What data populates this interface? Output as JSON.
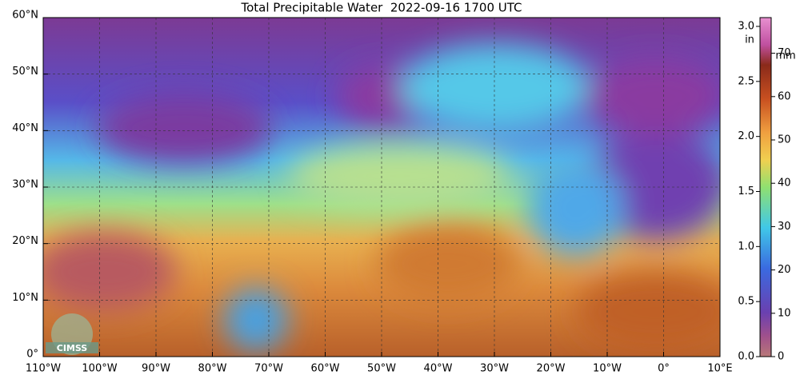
{
  "title": "Total Precipitable Water  2022-09-16 1700 UTC",
  "map": {
    "lon_range": [
      -110,
      10
    ],
    "lat_range": [
      0,
      60
    ],
    "lon_ticks": [
      {
        "value": -110,
        "label": "110°W"
      },
      {
        "value": -100,
        "label": "100°W"
      },
      {
        "value": -90,
        "label": "90°W"
      },
      {
        "value": -80,
        "label": "80°W"
      },
      {
        "value": -70,
        "label": "70°W"
      },
      {
        "value": -60,
        "label": "60°W"
      },
      {
        "value": -50,
        "label": "50°W"
      },
      {
        "value": -40,
        "label": "40°W"
      },
      {
        "value": -30,
        "label": "30°W"
      },
      {
        "value": -20,
        "label": "20°W"
      },
      {
        "value": -10,
        "label": "10°W"
      },
      {
        "value": 0,
        "label": "0°"
      },
      {
        "value": 10,
        "label": "10°E"
      }
    ],
    "lat_ticks": [
      {
        "value": 0,
        "label": "0°"
      },
      {
        "value": 10,
        "label": "10°N"
      },
      {
        "value": 20,
        "label": "20°N"
      },
      {
        "value": 30,
        "label": "30°N"
      },
      {
        "value": 40,
        "label": "40°N"
      },
      {
        "value": 50,
        "label": "50°N"
      },
      {
        "value": 60,
        "label": "60°N"
      }
    ],
    "logo": "CIMSS"
  },
  "colorbar": {
    "range_in": [
      0,
      3.08
    ],
    "inch_unit": "in",
    "mm_unit": "mm",
    "inch_ticks": [
      {
        "value": 0,
        "label": "0.0"
      },
      {
        "value": 0.5,
        "label": "0.5"
      },
      {
        "value": 1,
        "label": "1.0"
      },
      {
        "value": 1.5,
        "label": "1.5"
      },
      {
        "value": 2,
        "label": "2.0"
      },
      {
        "value": 2.5,
        "label": "2.5"
      },
      {
        "value": 3,
        "label": "3.0"
      }
    ],
    "mm_ticks": [
      0,
      10,
      20,
      30,
      40,
      50,
      60,
      70
    ]
  }
}
